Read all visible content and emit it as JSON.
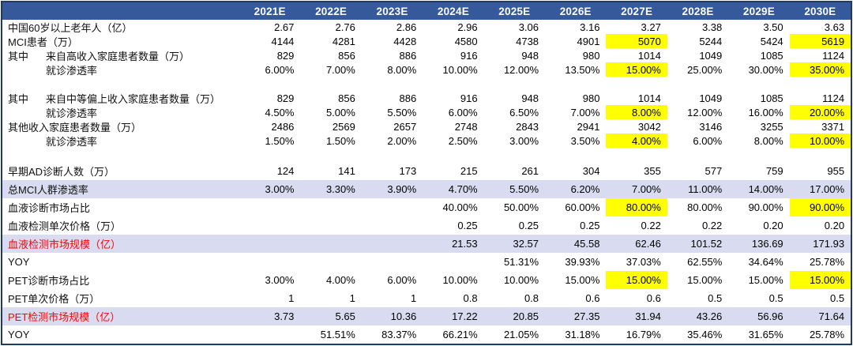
{
  "colors": {
    "header_bg": "#35599A",
    "table_border": "#1F3864",
    "band_bg": "#D9DCF0",
    "highlight_bg": "#FFFF00",
    "red_label": "#FF0000"
  },
  "header": {
    "years": [
      "2021E",
      "2022E",
      "2023E",
      "2024E",
      "2025E",
      "2026E",
      "2027E",
      "2028E",
      "2029E",
      "2030E"
    ]
  },
  "rows": [
    {
      "label": "中国60岁以上老年人（亿）",
      "values": [
        "2.67",
        "2.76",
        "2.86",
        "2.96",
        "3.06",
        "3.16",
        "3.27",
        "3.38",
        "3.50",
        "3.63"
      ]
    },
    {
      "label": "MCI患者（万）",
      "values": [
        "4144",
        "4281",
        "4428",
        "4580",
        "4738",
        "4901",
        "5070",
        "5244",
        "5424",
        "5619"
      ],
      "highlight_cols": [
        6,
        9
      ]
    },
    {
      "prefix": "其中",
      "label": "来自高收入家庭患者数量（万）",
      "values": [
        "829",
        "856",
        "886",
        "916",
        "948",
        "980",
        "1014",
        "1049",
        "1085",
        "1124"
      ]
    },
    {
      "label": "就诊渗透率",
      "indent": true,
      "values": [
        "6.00%",
        "7.00%",
        "8.00%",
        "10.00%",
        "12.00%",
        "13.50%",
        "15.00%",
        "25.00%",
        "30.00%",
        "35.00%"
      ],
      "highlight_cols": [
        6,
        9
      ]
    },
    {
      "blank": true
    },
    {
      "prefix": "其中",
      "label": "来自中等偏上收入家庭患者数量（万）",
      "values": [
        "829",
        "856",
        "886",
        "916",
        "948",
        "980",
        "1014",
        "1049",
        "1085",
        "1124"
      ]
    },
    {
      "label": "就诊渗透率",
      "indent": true,
      "values": [
        "4.50%",
        "5.00%",
        "5.50%",
        "6.00%",
        "6.50%",
        "7.00%",
        "8.00%",
        "12.00%",
        "16.00%",
        "20.00%"
      ],
      "highlight_cols": [
        6,
        9
      ]
    },
    {
      "label": "其他收入家庭患者数量（万）",
      "values": [
        "2486",
        "2569",
        "2657",
        "2748",
        "2843",
        "2941",
        "3042",
        "3146",
        "3255",
        "3371"
      ]
    },
    {
      "label": "就诊渗透率",
      "indent": true,
      "values": [
        "1.50%",
        "1.50%",
        "2.00%",
        "2.50%",
        "3.00%",
        "3.50%",
        "4.00%",
        "6.00%",
        "8.00%",
        "10.00%"
      ],
      "highlight_cols": [
        6,
        9
      ]
    },
    {
      "blank": true
    },
    {
      "label": "早期AD诊断人数（万）",
      "tall": true,
      "values": [
        "124",
        "141",
        "173",
        "215",
        "261",
        "304",
        "355",
        "577",
        "759",
        "955"
      ]
    },
    {
      "label": "总MCI人群渗透率",
      "tall": true,
      "band": true,
      "values": [
        "3.00%",
        "3.30%",
        "3.90%",
        "4.70%",
        "5.50%",
        "6.20%",
        "7.00%",
        "11.00%",
        "14.00%",
        "17.00%"
      ]
    },
    {
      "label": "血液诊断市场占比",
      "tall": true,
      "values": [
        "",
        "",
        "",
        "40.00%",
        "50.00%",
        "60.00%",
        "80.00%",
        "80.00%",
        "90.00%",
        "90.00%"
      ],
      "highlight_cols": [
        6,
        9
      ]
    },
    {
      "label": "血液检测单次价格（万）",
      "tall": true,
      "values": [
        "",
        "",
        "",
        "0.25",
        "0.25",
        "0.25",
        "0.22",
        "0.22",
        "0.20",
        "0.20"
      ]
    },
    {
      "label": "血液检测市场规模（亿）",
      "tall": true,
      "band": true,
      "red": true,
      "values": [
        "",
        "",
        "",
        "21.53",
        "32.57",
        "45.58",
        "62.46",
        "101.52",
        "136.69",
        "171.93"
      ]
    },
    {
      "label": "YOY",
      "tall": true,
      "values": [
        "",
        "",
        "",
        "",
        "51.31%",
        "39.93%",
        "37.03%",
        "62.55%",
        "34.64%",
        "25.78%"
      ]
    },
    {
      "label": "PET诊断市场占比",
      "tall": true,
      "values": [
        "3.00%",
        "4.00%",
        "6.00%",
        "10.00%",
        "10.00%",
        "15.00%",
        "15.00%",
        "15.00%",
        "15.00%",
        "15.00%"
      ],
      "highlight_cols": [
        6,
        9
      ]
    },
    {
      "label": "PET单次价格（万）",
      "tall": true,
      "values": [
        "1",
        "1",
        "1",
        "0.8",
        "0.8",
        "0.6",
        "0.6",
        "0.5",
        "0.5",
        "0.5"
      ]
    },
    {
      "label": "PET检测市场规模（亿）",
      "tall": true,
      "band": true,
      "red": true,
      "values": [
        "3.73",
        "5.65",
        "10.36",
        "17.22",
        "20.85",
        "27.35",
        "31.94",
        "43.26",
        "56.96",
        "71.64"
      ]
    },
    {
      "label": "YOY",
      "tall": true,
      "values": [
        "",
        "51.51%",
        "83.37%",
        "66.21%",
        "21.05%",
        "31.18%",
        "16.79%",
        "35.46%",
        "31.65%",
        "25.78%"
      ]
    }
  ]
}
